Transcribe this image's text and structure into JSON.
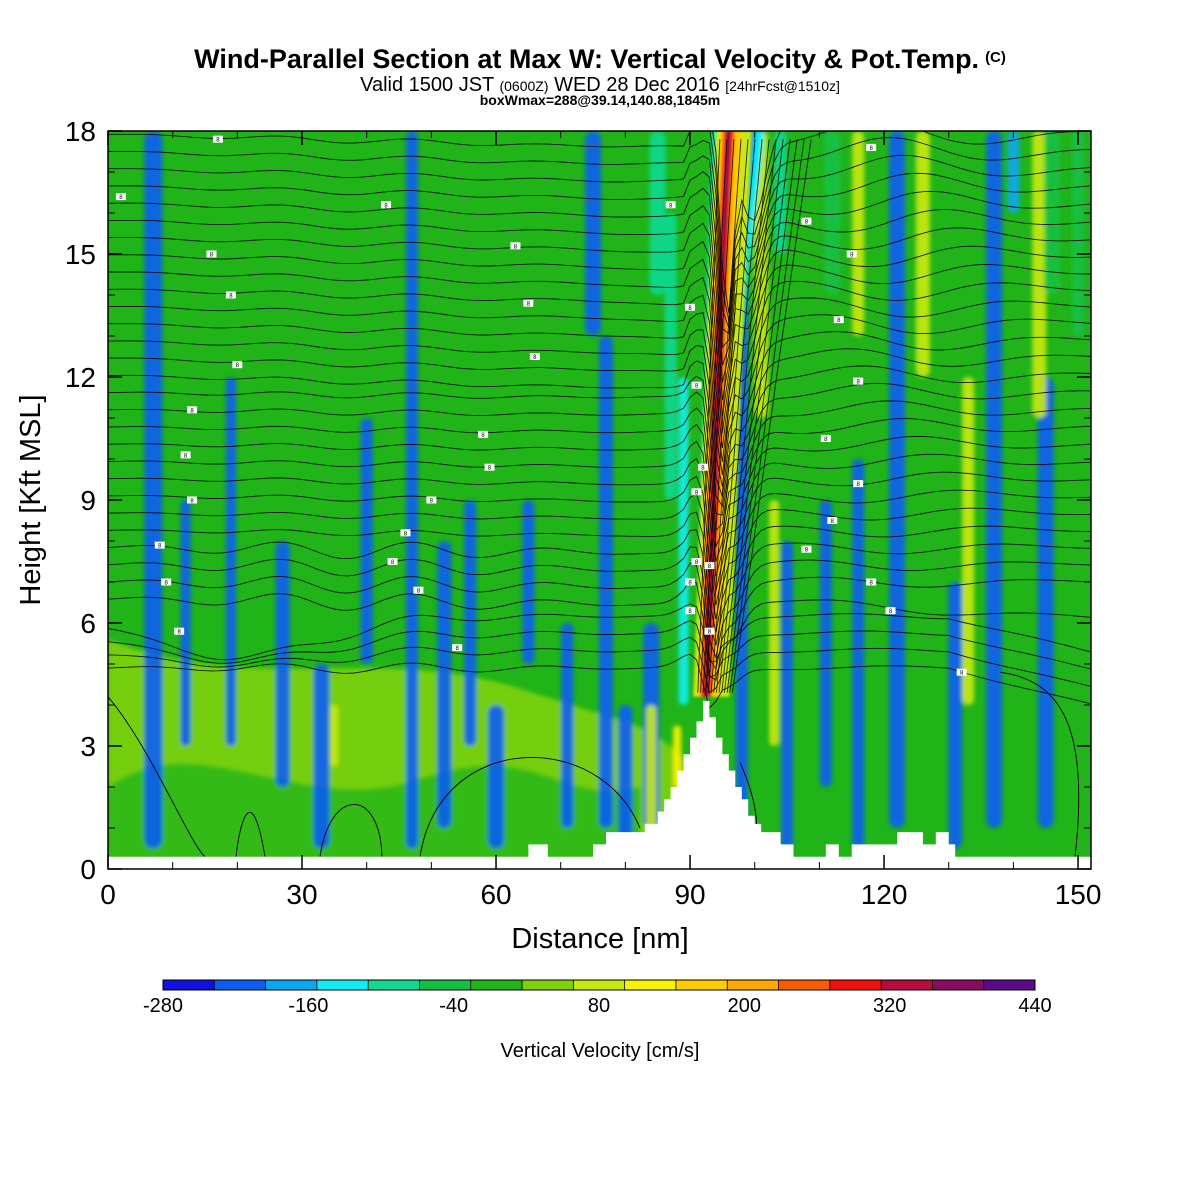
{
  "header": {
    "title": "Wind-Parallel Section at Max W: Vertical Velocity & Pot.Temp.",
    "copyright": "(C)",
    "valid_prefix": "Valid 1500 JST",
    "valid_utc": "(0600Z)",
    "valid_date": "WED 28 Dec 2016",
    "forecast": "[24hrFcst@1510z]",
    "box_info": "boxWmax=288@39.14,140.88,1845m"
  },
  "chart_data": {
    "type": "heatmap",
    "xlabel": "Distance [nm]",
    "ylabel": "Height [Kft MSL]",
    "xlim": [
      0,
      152
    ],
    "ylim": [
      0,
      18
    ],
    "xticks": [
      0,
      30,
      60,
      90,
      120,
      150
    ],
    "yticks": [
      0,
      3,
      6,
      9,
      12,
      15,
      18
    ],
    "colorbar": {
      "label": "Vertical Velocity [cm/s]",
      "levels": [
        -280,
        -250,
        -220,
        -190,
        -160,
        -130,
        -100,
        -70,
        -40,
        -10,
        20,
        50,
        80,
        110,
        140,
        170,
        200,
        230,
        260,
        290,
        320,
        350,
        380,
        410,
        440
      ],
      "tick_labels": [
        "-280",
        "-160",
        "-40",
        "80",
        "200",
        "320",
        "440"
      ],
      "colors": [
        "#1010e0",
        "#0a5ef0",
        "#0aa8f0",
        "#10eef0",
        "#10d890",
        "#14c044",
        "#20b418",
        "#7ed20a",
        "#c8e812",
        "#fff200",
        "#ffcc00",
        "#ffa800",
        "#ff5a00",
        "#f01010",
        "#b80c3c",
        "#8a0a60",
        "#5a0a8a"
      ]
    },
    "terrain_kft": [
      [
        0,
        0.3
      ],
      [
        8,
        0.3
      ],
      [
        64,
        0.3
      ],
      [
        65,
        0.6
      ],
      [
        67,
        0.6
      ],
      [
        68,
        0.3
      ],
      [
        74,
        0.3
      ],
      [
        75,
        0.6
      ],
      [
        77,
        0.9
      ],
      [
        82,
        0.9
      ],
      [
        83,
        1.1
      ],
      [
        85,
        1.4
      ],
      [
        86,
        1.7
      ],
      [
        87,
        2.0
      ],
      [
        88,
        2.4
      ],
      [
        89,
        2.8
      ],
      [
        90,
        3.2
      ],
      [
        91,
        3.6
      ],
      [
        92,
        4.1
      ],
      [
        93,
        3.7
      ],
      [
        94,
        3.2
      ],
      [
        95,
        2.8
      ],
      [
        96,
        2.4
      ],
      [
        97,
        2.0
      ],
      [
        98,
        1.7
      ],
      [
        99,
        1.3
      ],
      [
        100,
        1.1
      ],
      [
        101,
        0.9
      ],
      [
        104,
        0.6
      ],
      [
        106,
        0.3
      ],
      [
        110,
        0.3
      ],
      [
        111,
        0.6
      ],
      [
        112,
        0.6
      ],
      [
        113,
        0.3
      ],
      [
        114,
        0.3
      ],
      [
        115,
        0.6
      ],
      [
        122,
        0.9
      ],
      [
        126,
        0.6
      ],
      [
        128,
        0.9
      ],
      [
        130,
        0.6
      ],
      [
        131,
        0.3
      ],
      [
        152,
        0.3
      ]
    ],
    "updraft_axis": [
      [
        92.5,
        4.2
      ],
      [
        93.2,
        7
      ],
      [
        93.9,
        10
      ],
      [
        94.6,
        13
      ],
      [
        95.4,
        16
      ],
      [
        96,
        18
      ]
    ],
    "downdraft_axis": [
      [
        92,
        4.5
      ],
      [
        92.6,
        7
      ],
      [
        93.8,
        10
      ],
      [
        95.2,
        13
      ],
      [
        96.6,
        16
      ],
      [
        97.5,
        18
      ]
    ],
    "potential_temperature_contour_labels": [
      {
        "x": 2,
        "y": 16.4,
        "text": "8"
      },
      {
        "x": 17,
        "y": 17.8,
        "text": "8"
      },
      {
        "x": 43,
        "y": 16.2,
        "text": "8"
      },
      {
        "x": 16,
        "y": 15.0,
        "text": "8"
      },
      {
        "x": 63,
        "y": 15.2,
        "text": "8"
      },
      {
        "x": 19,
        "y": 14.0,
        "text": "8"
      },
      {
        "x": 65,
        "y": 13.8,
        "text": "8"
      },
      {
        "x": 20,
        "y": 12.3,
        "text": "8"
      },
      {
        "x": 66,
        "y": 12.5,
        "text": "8"
      },
      {
        "x": 13,
        "y": 11.2,
        "text": "8"
      },
      {
        "x": 58,
        "y": 10.6,
        "text": "8"
      },
      {
        "x": 12,
        "y": 10.1,
        "text": "8"
      },
      {
        "x": 59,
        "y": 9.8,
        "text": "8"
      },
      {
        "x": 13,
        "y": 9.0,
        "text": "8"
      },
      {
        "x": 50,
        "y": 9.0,
        "text": "8"
      },
      {
        "x": 46,
        "y": 8.2,
        "text": "8"
      },
      {
        "x": 8,
        "y": 7.9,
        "text": "8"
      },
      {
        "x": 44,
        "y": 7.5,
        "text": "8"
      },
      {
        "x": 9,
        "y": 7.0,
        "text": "8"
      },
      {
        "x": 48,
        "y": 6.8,
        "text": "8"
      },
      {
        "x": 11,
        "y": 5.8,
        "text": "8"
      },
      {
        "x": 54,
        "y": 5.4,
        "text": "8"
      },
      {
        "x": 87,
        "y": 16.2,
        "text": "8"
      },
      {
        "x": 90,
        "y": 13.7,
        "text": "8"
      },
      {
        "x": 91,
        "y": 11.8,
        "text": "8"
      },
      {
        "x": 92,
        "y": 9.8,
        "text": "8"
      },
      {
        "x": 91,
        "y": 9.2,
        "text": "8"
      },
      {
        "x": 91,
        "y": 7.5,
        "text": "8"
      },
      {
        "x": 90,
        "y": 7.0,
        "text": "8"
      },
      {
        "x": 90,
        "y": 6.3,
        "text": "8"
      },
      {
        "x": 93,
        "y": 7.4,
        "text": "8"
      },
      {
        "x": 93,
        "y": 5.8,
        "text": "8"
      },
      {
        "x": 118,
        "y": 17.6,
        "text": "8"
      },
      {
        "x": 108,
        "y": 15.8,
        "text": "8"
      },
      {
        "x": 115,
        "y": 15.0,
        "text": "8"
      },
      {
        "x": 113,
        "y": 13.4,
        "text": "8"
      },
      {
        "x": 116,
        "y": 11.9,
        "text": "8"
      },
      {
        "x": 111,
        "y": 10.5,
        "text": "8"
      },
      {
        "x": 116,
        "y": 9.4,
        "text": "8"
      },
      {
        "x": 112,
        "y": 8.5,
        "text": "8"
      },
      {
        "x": 108,
        "y": 7.8,
        "text": "8"
      },
      {
        "x": 118,
        "y": 7.0,
        "text": "8"
      },
      {
        "x": 121,
        "y": 6.3,
        "text": "8"
      },
      {
        "x": 132,
        "y": 4.8,
        "text": "8"
      }
    ]
  }
}
